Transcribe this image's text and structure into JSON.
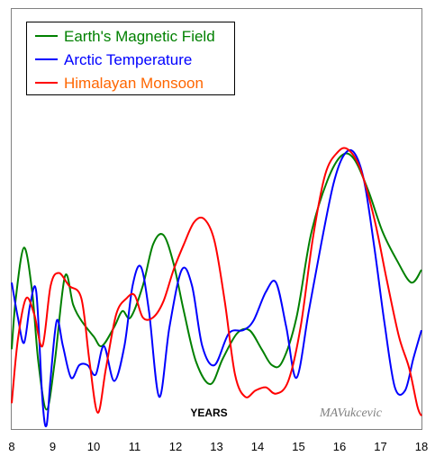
{
  "chart_data": {
    "type": "line",
    "xlabel": "YEARS",
    "xlim": [
      8,
      18
    ],
    "ylim": [
      0,
      1
    ],
    "x_ticks": [
      8,
      9,
      10,
      11,
      12,
      13,
      14,
      15,
      16,
      17,
      18
    ],
    "x_tick_labels": [
      "8",
      "9",
      "10",
      "11",
      "12",
      "13",
      "14",
      "15",
      "16",
      "17",
      "18"
    ],
    "grid": false,
    "legend_position": "top-left",
    "signature": "MAVukcevic",
    "series": [
      {
        "name": "Earth's Magnetic Field",
        "color": "#008000",
        "label_color": "#008000",
        "points": [
          [
            8.0,
            0.24
          ],
          [
            8.1,
            0.4
          ],
          [
            8.3,
            0.56
          ],
          [
            8.5,
            0.42
          ],
          [
            8.65,
            0.2
          ],
          [
            8.85,
            0.05
          ],
          [
            9.05,
            0.2
          ],
          [
            9.3,
            0.47
          ],
          [
            9.5,
            0.38
          ],
          [
            9.7,
            0.33
          ],
          [
            10.0,
            0.28
          ],
          [
            10.2,
            0.25
          ],
          [
            10.5,
            0.31
          ],
          [
            10.7,
            0.36
          ],
          [
            10.9,
            0.34
          ],
          [
            11.2,
            0.44
          ],
          [
            11.45,
            0.57
          ],
          [
            11.7,
            0.6
          ],
          [
            11.95,
            0.51
          ],
          [
            12.2,
            0.36
          ],
          [
            12.5,
            0.2
          ],
          [
            12.85,
            0.13
          ],
          [
            13.15,
            0.21
          ],
          [
            13.5,
            0.29
          ],
          [
            13.8,
            0.3
          ],
          [
            14.1,
            0.24
          ],
          [
            14.35,
            0.19
          ],
          [
            14.6,
            0.2
          ],
          [
            14.95,
            0.34
          ],
          [
            15.3,
            0.6
          ],
          [
            15.7,
            0.77
          ],
          [
            16.05,
            0.85
          ],
          [
            16.35,
            0.84
          ],
          [
            16.7,
            0.74
          ],
          [
            17.05,
            0.61
          ],
          [
            17.4,
            0.52
          ],
          [
            17.75,
            0.45
          ],
          [
            18.0,
            0.49
          ]
        ]
      },
      {
        "name": "Arctic Temperature",
        "color": "#0000ff",
        "label_color": "#0000ff",
        "points": [
          [
            8.0,
            0.45
          ],
          [
            8.15,
            0.34
          ],
          [
            8.3,
            0.26
          ],
          [
            8.45,
            0.38
          ],
          [
            8.6,
            0.42
          ],
          [
            8.75,
            0.08
          ],
          [
            8.85,
            0.0
          ],
          [
            8.95,
            0.15
          ],
          [
            9.1,
            0.33
          ],
          [
            9.25,
            0.25
          ],
          [
            9.45,
            0.15
          ],
          [
            9.65,
            0.19
          ],
          [
            9.85,
            0.19
          ],
          [
            10.05,
            0.16
          ],
          [
            10.25,
            0.25
          ],
          [
            10.5,
            0.14
          ],
          [
            10.75,
            0.25
          ],
          [
            10.95,
            0.44
          ],
          [
            11.15,
            0.5
          ],
          [
            11.35,
            0.36
          ],
          [
            11.6,
            0.09
          ],
          [
            11.85,
            0.31
          ],
          [
            12.15,
            0.49
          ],
          [
            12.4,
            0.44
          ],
          [
            12.65,
            0.25
          ],
          [
            12.95,
            0.19
          ],
          [
            13.3,
            0.29
          ],
          [
            13.65,
            0.3
          ],
          [
            13.9,
            0.33
          ],
          [
            14.2,
            0.42
          ],
          [
            14.45,
            0.45
          ],
          [
            14.7,
            0.31
          ],
          [
            14.95,
            0.15
          ],
          [
            15.25,
            0.36
          ],
          [
            15.55,
            0.57
          ],
          [
            15.85,
            0.76
          ],
          [
            16.1,
            0.85
          ],
          [
            16.35,
            0.86
          ],
          [
            16.6,
            0.77
          ],
          [
            16.85,
            0.56
          ],
          [
            17.1,
            0.32
          ],
          [
            17.35,
            0.12
          ],
          [
            17.6,
            0.11
          ],
          [
            17.8,
            0.21
          ],
          [
            18.0,
            0.3
          ]
        ]
      },
      {
        "name": "Himalayan Monsoon",
        "color": "#ff0000",
        "label_color": "#ff6600",
        "points": [
          [
            8.0,
            0.07
          ],
          [
            8.15,
            0.27
          ],
          [
            8.35,
            0.4
          ],
          [
            8.55,
            0.35
          ],
          [
            8.75,
            0.25
          ],
          [
            8.95,
            0.44
          ],
          [
            9.15,
            0.48
          ],
          [
            9.4,
            0.44
          ],
          [
            9.7,
            0.4
          ],
          [
            9.9,
            0.2
          ],
          [
            10.1,
            0.04
          ],
          [
            10.3,
            0.18
          ],
          [
            10.55,
            0.35
          ],
          [
            10.8,
            0.4
          ],
          [
            11.0,
            0.41
          ],
          [
            11.2,
            0.34
          ],
          [
            11.45,
            0.34
          ],
          [
            11.7,
            0.39
          ],
          [
            11.95,
            0.49
          ],
          [
            12.2,
            0.57
          ],
          [
            12.45,
            0.64
          ],
          [
            12.7,
            0.65
          ],
          [
            12.95,
            0.58
          ],
          [
            13.2,
            0.39
          ],
          [
            13.45,
            0.16
          ],
          [
            13.7,
            0.09
          ],
          [
            13.95,
            0.11
          ],
          [
            14.2,
            0.12
          ],
          [
            14.45,
            0.1
          ],
          [
            14.75,
            0.14
          ],
          [
            15.05,
            0.31
          ],
          [
            15.35,
            0.59
          ],
          [
            15.65,
            0.79
          ],
          [
            15.95,
            0.86
          ],
          [
            16.2,
            0.87
          ],
          [
            16.5,
            0.81
          ],
          [
            16.85,
            0.65
          ],
          [
            17.15,
            0.46
          ],
          [
            17.45,
            0.28
          ],
          [
            17.7,
            0.18
          ],
          [
            17.9,
            0.06
          ],
          [
            18.0,
            0.03
          ]
        ]
      }
    ]
  }
}
